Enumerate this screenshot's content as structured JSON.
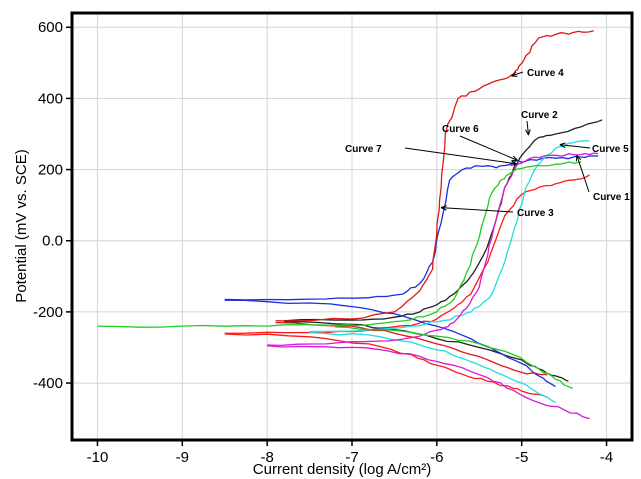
{
  "chart_data": {
    "type": "line",
    "xlabel": "Current density (log A/cm²)",
    "ylabel": "Potential (mV vs. SCE)",
    "xlim": [
      -10.3,
      -3.7
    ],
    "ylim": [
      -560,
      640
    ],
    "x_ticks": [
      {
        "value": -10,
        "label": "-10"
      },
      {
        "value": -9,
        "label": "-9"
      },
      {
        "value": -8,
        "label": "-8"
      },
      {
        "value": -7,
        "label": "-7"
      },
      {
        "value": -6,
        "label": "-6"
      },
      {
        "value": -5,
        "label": "-5"
      },
      {
        "value": -4,
        "label": "-4"
      }
    ],
    "y_ticks": [
      {
        "value": 600,
        "label": "600"
      },
      {
        "value": 400,
        "label": "400"
      },
      {
        "value": 200,
        "label": "200"
      },
      {
        "value": 0,
        "label": "0.0"
      },
      {
        "value": -200,
        "label": "-200"
      },
      {
        "value": -400,
        "label": "-400"
      }
    ],
    "grid": true,
    "series": [
      {
        "name": "Curve 1",
        "color": "#ff1a1a",
        "x": [
          -8.5,
          -7.5,
          -6.8,
          -6.3,
          -6.0,
          -5.8,
          -5.6,
          -5.4,
          -5.2,
          -5.0,
          -4.8,
          -4.6,
          -4.4,
          -4.2
        ],
        "y": [
          -260,
          -258,
          -252,
          -238,
          -220,
          -190,
          -150,
          -60,
          70,
          130,
          150,
          160,
          170,
          185
        ]
      },
      {
        "name": "Curve 1",
        "color": "#ff1a1a",
        "x": [
          -8.5,
          -7.5,
          -6.8,
          -6.3,
          -6.0,
          -5.7,
          -5.4,
          -5.1,
          -4.9,
          -4.7
        ],
        "y": [
          -262,
          -270,
          -290,
          -320,
          -350,
          -375,
          -395,
          -415,
          -430,
          -440
        ]
      },
      {
        "name": "Curve 2",
        "color": "#222222",
        "x": [
          -7.8,
          -7.0,
          -6.5,
          -6.2,
          -6.0,
          -5.8,
          -5.6,
          -5.45,
          -5.3,
          -5.2,
          -5.1,
          -5.0,
          -4.8,
          -4.6,
          -4.3,
          -4.05
        ],
        "y": [
          -225,
          -223,
          -215,
          -200,
          -180,
          -150,
          -100,
          -40,
          60,
          150,
          200,
          240,
          290,
          300,
          320,
          340
        ]
      },
      {
        "name": "Curve 2",
        "color": "#222222",
        "x": [
          -7.8,
          -7.0,
          -6.5,
          -6.0,
          -5.5,
          -5.0,
          -4.8,
          -4.6,
          -4.45
        ],
        "y": [
          -228,
          -235,
          -250,
          -275,
          -300,
          -335,
          -360,
          -380,
          -395
        ]
      },
      {
        "name": "Curve 3",
        "color": "#1e2de0",
        "x": [
          -8.5,
          -7.5,
          -6.8,
          -6.4,
          -6.2,
          -6.05,
          -5.95,
          -5.85,
          -5.7,
          -5.5,
          -5.3,
          -5.1,
          -4.9,
          -4.6,
          -4.3,
          -4.1
        ],
        "y": [
          -165,
          -164,
          -160,
          -150,
          -120,
          -60,
          50,
          170,
          200,
          210,
          205,
          220,
          228,
          232,
          235,
          238
        ]
      },
      {
        "name": "Curve 3",
        "color": "#1e2de0",
        "x": [
          -8.5,
          -7.5,
          -7.0,
          -6.5,
          -6.0,
          -5.6,
          -5.3,
          -5.0,
          -4.8,
          -4.6
        ],
        "y": [
          -167,
          -175,
          -185,
          -205,
          -240,
          -275,
          -310,
          -345,
          -380,
          -410
        ]
      },
      {
        "name": "Curve 4",
        "color": "#e01818",
        "x": [
          -7.9,
          -7.0,
          -6.5,
          -6.2,
          -6.05,
          -6.0,
          -5.95,
          -5.9,
          -5.75,
          -5.55,
          -5.35,
          -5.15,
          -5.05,
          -4.95,
          -4.8,
          -4.6,
          -4.4,
          -4.15
        ],
        "y": [
          -225,
          -220,
          -200,
          -140,
          -80,
          20,
          150,
          300,
          400,
          420,
          445,
          460,
          480,
          520,
          570,
          580,
          585,
          590
        ]
      },
      {
        "name": "Curve 4",
        "color": "#e01818",
        "x": [
          -7.9,
          -7.0,
          -6.5,
          -6.0,
          -5.6,
          -5.3,
          -5.0,
          -4.8,
          -4.7
        ],
        "y": [
          -230,
          -240,
          -260,
          -290,
          -320,
          -345,
          -370,
          -375,
          -378
        ]
      },
      {
        "name": "Curve 5",
        "color": "#22dddd",
        "x": [
          -7.5,
          -6.8,
          -6.3,
          -6.0,
          -5.7,
          -5.5,
          -5.35,
          -5.2,
          -5.05,
          -4.95,
          -4.8,
          -4.6,
          -4.4,
          -4.2
        ],
        "y": [
          -255,
          -250,
          -240,
          -228,
          -210,
          -185,
          -150,
          -60,
          60,
          150,
          215,
          260,
          275,
          280
        ]
      },
      {
        "name": "Curve 5",
        "color": "#22dddd",
        "x": [
          -7.5,
          -6.8,
          -6.3,
          -5.9,
          -5.6,
          -5.3,
          -5.0,
          -4.8,
          -4.6
        ],
        "y": [
          -258,
          -265,
          -285,
          -310,
          -340,
          -370,
          -400,
          -430,
          -455
        ]
      },
      {
        "name": "Curve 6",
        "color": "#d61ad6",
        "x": [
          -8.0,
          -7.3,
          -6.7,
          -6.2,
          -5.95,
          -5.8,
          -5.65,
          -5.5,
          -5.4,
          -5.3,
          -5.2,
          -5.05,
          -4.85,
          -4.6,
          -4.3,
          -4.1
        ],
        "y": [
          -293,
          -290,
          -282,
          -268,
          -250,
          -230,
          -190,
          -130,
          -40,
          60,
          150,
          215,
          235,
          240,
          242,
          245
        ]
      },
      {
        "name": "Curve 6",
        "color": "#d61ad6",
        "x": [
          -8.0,
          -7.3,
          -6.7,
          -6.2,
          -5.8,
          -5.4,
          -5.1,
          -4.8,
          -4.5,
          -4.2
        ],
        "y": [
          -295,
          -298,
          -305,
          -325,
          -350,
          -385,
          -420,
          -455,
          -475,
          -500
        ]
      },
      {
        "name": "Curve 7",
        "color": "#22cc22",
        "x": [
          -10.0,
          -9.0,
          -8.0,
          -7.2,
          -6.7,
          -6.3,
          -6.0,
          -5.8,
          -5.65,
          -5.5,
          -5.38,
          -5.25,
          -5.1,
          -4.9,
          -4.6,
          -4.3
        ],
        "y": [
          -240,
          -240,
          -240,
          -238,
          -233,
          -222,
          -200,
          -165,
          -90,
          10,
          120,
          170,
          195,
          208,
          215,
          222
        ]
      },
      {
        "name": "Curve 7",
        "color": "#22cc22",
        "x": [
          -7.2,
          -6.6,
          -6.0,
          -5.5,
          -5.1,
          -4.8,
          -4.6,
          -4.4
        ],
        "y": [
          -242,
          -250,
          -268,
          -290,
          -320,
          -360,
          -390,
          -415
        ]
      }
    ],
    "annotations": [
      {
        "label": "Curve 4",
        "target": [
          -5.12,
          463
        ]
      },
      {
        "label": "Curve 2",
        "target": [
          -4.92,
          297
        ]
      },
      {
        "label": "Curve 6",
        "target": [
          -5.05,
          226
        ]
      },
      {
        "label": "Curve 7",
        "target": [
          -5.06,
          216
        ]
      },
      {
        "label": "Curve 5",
        "target": [
          -4.55,
          270
        ]
      },
      {
        "label": "Curve 1",
        "target": [
          -4.35,
          240
        ]
      },
      {
        "label": "Curve 3",
        "target": [
          -5.95,
          93
        ]
      }
    ]
  }
}
